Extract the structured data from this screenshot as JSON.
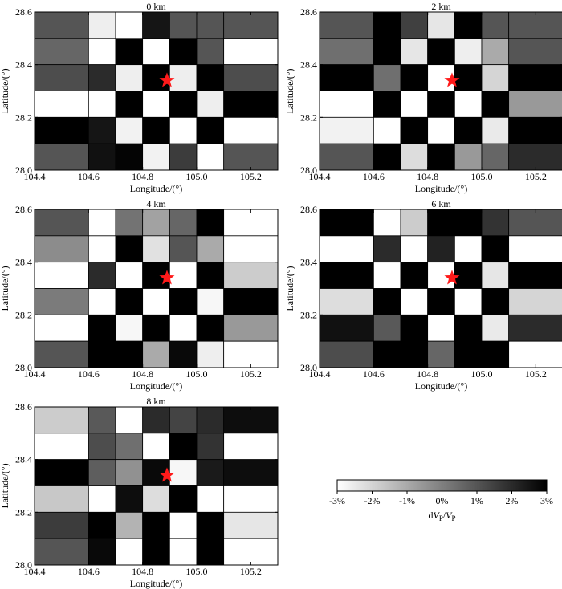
{
  "chart_data": {
    "type": "heatmap",
    "colorbar": {
      "ticks": [
        "-3%",
        "-2%",
        "-1%",
        "0%",
        "1%",
        "2%",
        "3%"
      ],
      "range": [
        -3,
        3
      ],
      "label_prefix": "d",
      "label_main": "V",
      "label_sub": "P",
      "label_slash": "/",
      "colormap": "white-to-black"
    },
    "x_edges": [
      104.4,
      104.6,
      104.7,
      104.8,
      104.9,
      105.0,
      105.1,
      105.3
    ],
    "y_edges": [
      28.6,
      28.5,
      28.4,
      28.3,
      28.2,
      28.1,
      28.0
    ],
    "xlim": [
      104.4,
      105.3
    ],
    "ylim": [
      28.0,
      28.6
    ],
    "xticks": [
      104.4,
      104.6,
      104.8,
      105.0,
      105.2
    ],
    "xtick_labels": [
      "104.4",
      "104.6",
      "104.8",
      "105.0",
      "105.2"
    ],
    "yticks": [
      28.0,
      28.2,
      28.4,
      28.6
    ],
    "ytick_labels": [
      "28.0",
      "28.2",
      "28.4",
      "28.6"
    ],
    "xlabel": "Longitude/(°)",
    "ylabel": "Latitude/(°)",
    "star": {
      "lon": 104.89,
      "lat": 28.34,
      "color": "#ff1a1a"
    },
    "panels": [
      {
        "title": "0 km",
        "values": [
          [
            1.0,
            -2.6,
            -3.0,
            2.5,
            1.0,
            1.0,
            1.0
          ],
          [
            0.6,
            -3.0,
            3.0,
            -3.0,
            3.0,
            1.0,
            -3.0
          ],
          [
            1.2,
            2.0,
            -2.6,
            3.0,
            -2.6,
            3.0,
            1.2
          ],
          [
            -3.0,
            -3.0,
            3.0,
            -3.0,
            3.0,
            -2.6,
            3.0
          ],
          [
            3.0,
            2.5,
            -2.7,
            3.0,
            -3.0,
            3.0,
            -3.0
          ],
          [
            1.0,
            2.6,
            2.9,
            -2.7,
            1.6,
            -3.0,
            1.0
          ]
        ]
      },
      {
        "title": "2 km",
        "values": [
          [
            1.0,
            3.0,
            1.5,
            -2.4,
            3.0,
            1.0,
            1.0
          ],
          [
            0.4,
            3.0,
            -2.4,
            3.0,
            -2.6,
            -1.0,
            1.0
          ],
          [
            3.0,
            0.4,
            3.0,
            -3.0,
            3.0,
            -2.0,
            3.0
          ],
          [
            -3.0,
            3.0,
            -3.0,
            3.0,
            -3.0,
            3.0,
            -0.6
          ],
          [
            -2.7,
            -3.0,
            3.0,
            -3.0,
            3.0,
            -2.5,
            3.0
          ],
          [
            1.0,
            3.0,
            -2.2,
            3.0,
            -0.6,
            0.6,
            2.0
          ]
        ]
      },
      {
        "title": "4 km",
        "values": [
          [
            1.0,
            -3.0,
            0.3,
            -0.8,
            0.6,
            3.0,
            -3.0
          ],
          [
            -0.3,
            -3.0,
            3.0,
            -2.3,
            1.0,
            -1.0,
            -3.0
          ],
          [
            -3.0,
            2.0,
            -3.0,
            3.0,
            -3.0,
            3.0,
            -1.8
          ],
          [
            0.1,
            -3.0,
            3.0,
            -3.0,
            3.0,
            -2.8,
            3.0
          ],
          [
            -3.0,
            3.0,
            -2.8,
            3.0,
            -3.0,
            3.0,
            -0.6
          ],
          [
            1.0,
            3.0,
            3.0,
            -1.0,
            2.8,
            -2.6,
            -3.0
          ]
        ]
      },
      {
        "title": "6 km",
        "values": [
          [
            3.0,
            -3.0,
            -1.8,
            3.0,
            3.0,
            1.8,
            1.0
          ],
          [
            -3.0,
            2.0,
            -3.0,
            2.2,
            -3.0,
            3.0,
            -3.0
          ],
          [
            3.0,
            -3.0,
            3.0,
            -3.0,
            3.0,
            -2.4,
            3.0
          ],
          [
            -2.2,
            3.0,
            -3.0,
            3.0,
            -3.0,
            3.0,
            -2.0
          ],
          [
            2.6,
            0.9,
            3.0,
            -3.0,
            3.0,
            -2.5,
            2.0
          ],
          [
            1.2,
            3.0,
            3.0,
            0.6,
            3.0,
            3.0,
            -3.0
          ]
        ]
      },
      {
        "title": "8 km",
        "values": [
          [
            -1.8,
            0.9,
            -3.0,
            2.0,
            1.4,
            2.0,
            2.7
          ],
          [
            -3.0,
            1.2,
            0.4,
            -3.0,
            3.0,
            1.8,
            -3.0
          ],
          [
            3.0,
            0.8,
            -0.4,
            2.8,
            -2.8,
            2.4,
            2.7
          ],
          [
            -1.7,
            -3.0,
            2.7,
            -2.2,
            3.0,
            -3.0,
            -3.0
          ],
          [
            1.6,
            3.0,
            -1.2,
            3.0,
            -3.0,
            3.0,
            -2.4
          ],
          [
            1.0,
            2.8,
            -3.0,
            3.0,
            -3.0,
            3.0,
            -3.0
          ]
        ]
      }
    ]
  }
}
